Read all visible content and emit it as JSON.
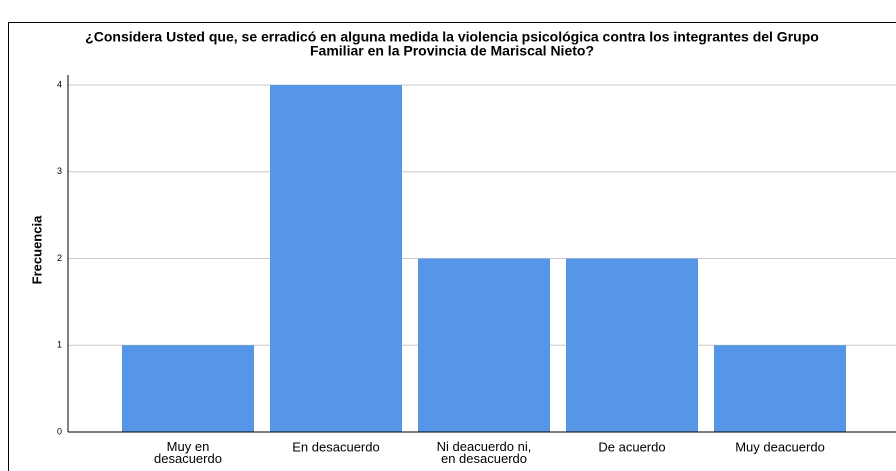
{
  "chart_data": {
    "type": "bar",
    "title": [
      "¿Considera Usted que, se erradicó en alguna medida la violencia psicológica contra los integrantes del Grupo",
      "Familiar en la Provincia de Mariscal Nieto?"
    ],
    "y_label": "Frecuencia",
    "categories": [
      "Muy en desacuerdo",
      "En desacuerdo",
      "Ni deacuerdo ni, en desacuerdo",
      "De acuerdo",
      "Muy deacuerdo"
    ],
    "values": [
      1,
      4,
      2,
      2,
      1
    ],
    "color": "#5596e6",
    "ylim": [
      0,
      4
    ],
    "yticks": [
      0,
      1,
      2,
      3,
      4
    ],
    "grid": true
  }
}
